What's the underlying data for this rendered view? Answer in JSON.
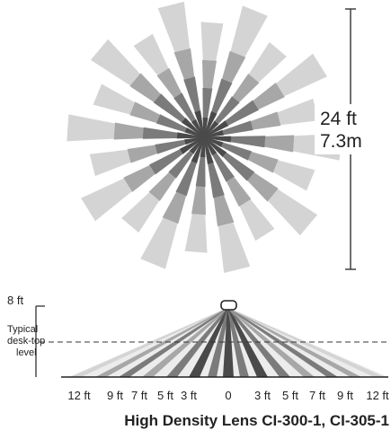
{
  "diagram": {
    "caption": "High Density Lens CI-300-1, CI-305-1",
    "range_ft": "24 ft",
    "range_m": "7.3m",
    "height_label": "8 ft",
    "desk_label_lines": [
      "Typical",
      "desk-top",
      "level"
    ],
    "side_axis_labels": [
      "12 ft",
      "9 ft",
      "7 ft",
      "5 ft",
      "3 ft",
      "0",
      "3 ft",
      "5 ft",
      "7 ft",
      "9 ft",
      "12 ft"
    ],
    "colors": {
      "light": "#d4d4d4",
      "mid": "#a7a7a7",
      "darkmid": "#7b7b7b",
      "dark": "#4a4a4a",
      "ink": "#222222"
    }
  }
}
